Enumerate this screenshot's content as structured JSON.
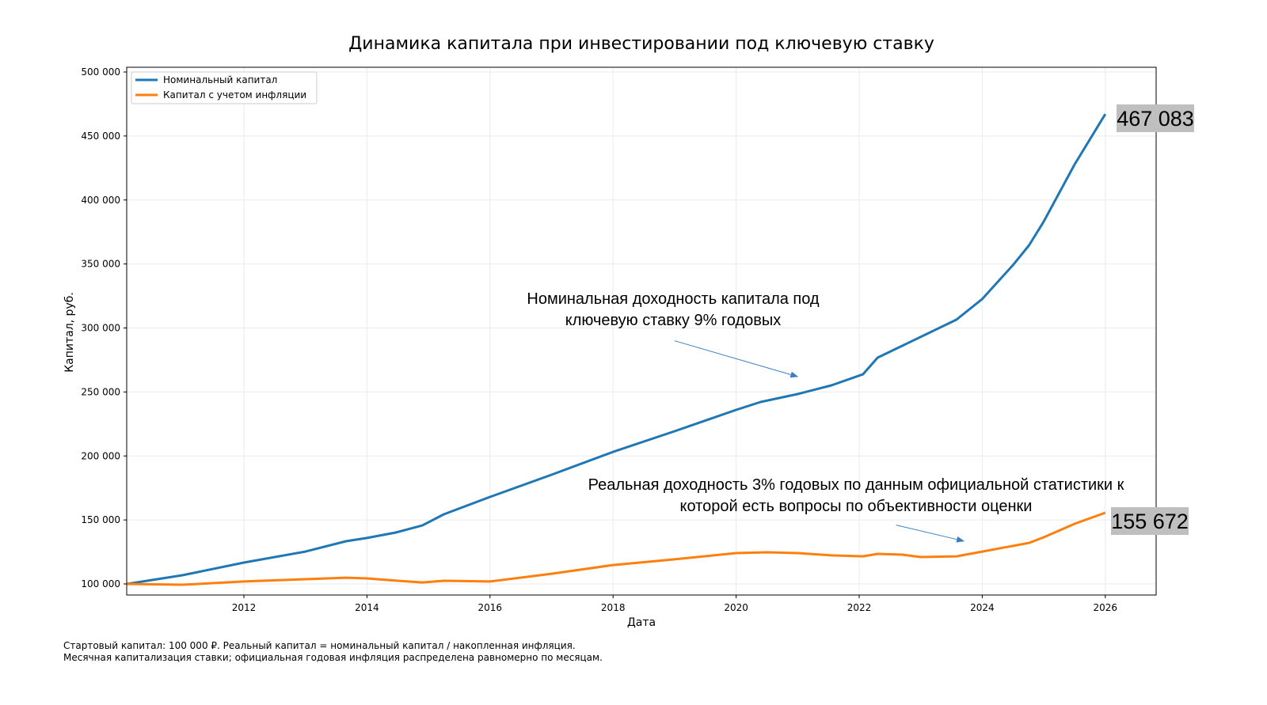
{
  "chart_data": {
    "type": "line",
    "title": "Динамика капитала при инвестировании под ключевую ставку",
    "xlabel": "Дата",
    "ylabel": "Капитал, руб.",
    "xlim": [
      2010.1,
      2026.8
    ],
    "ylim": [
      90000,
      505000
    ],
    "grid": true,
    "legend_position": "top-left",
    "x_ticks": [
      "2012",
      "2014",
      "2016",
      "2018",
      "2020",
      "2022",
      "2024",
      "2026"
    ],
    "y_ticks": [
      "100 000",
      "150 000",
      "200 000",
      "250 000",
      "300 000",
      "350 000",
      "400 000",
      "450 000",
      "500 000"
    ],
    "series": [
      {
        "name": "Номинальный капитал",
        "color": "#1f77b4",
        "x": [
          2010.1,
          2011.0,
          2012.0,
          2013.0,
          2013.66,
          2014.0,
          2014.47,
          2014.9,
          2015.25,
          2016.0,
          2017.0,
          2018.0,
          2019.0,
          2020.0,
          2020.4,
          2021.0,
          2021.55,
          2022.06,
          2022.3,
          2022.7,
          2023.58,
          2024.0,
          2024.5,
          2024.76,
          2025.0,
          2025.5,
          2026.0
        ],
        "y": [
          100000,
          106800,
          116700,
          125300,
          133400,
          135900,
          140200,
          145700,
          154400,
          168000,
          185300,
          203200,
          219300,
          236000,
          242200,
          248400,
          255200,
          263800,
          276800,
          286100,
          306500,
          322600,
          349200,
          364600,
          383200,
          427700,
          467083
        ]
      },
      {
        "name": "Капитал с учетом инфляции",
        "color": "#ff7f0e",
        "x": [
          2010.1,
          2011.0,
          2012.0,
          2013.0,
          2013.66,
          2014.0,
          2014.5,
          2014.9,
          2015.25,
          2016.0,
          2017.0,
          2018.0,
          2019.0,
          2020.0,
          2020.5,
          2021.0,
          2021.55,
          2022.06,
          2022.3,
          2022.7,
          2023.0,
          2023.58,
          2024.0,
          2024.76,
          2025.0,
          2025.5,
          2026.0
        ],
        "y": [
          100000,
          99400,
          101900,
          103700,
          104900,
          104300,
          102500,
          101200,
          102500,
          101900,
          108000,
          114800,
          119200,
          124100,
          124700,
          124100,
          122300,
          121600,
          123500,
          122900,
          121000,
          121600,
          125300,
          132100,
          136500,
          147000,
          155672
        ]
      }
    ],
    "end_labels": [
      "467 083",
      "155 672"
    ],
    "end_label_bg": "#bfbfbf",
    "annotations": [
      {
        "lines": [
          "Номинальная доходность капитала под",
          "ключевую ставку  9% годовых"
        ],
        "arrow_from": [
          2019.0,
          290000
        ],
        "arrow_to": [
          2021.0,
          262000
        ]
      },
      {
        "lines": [
          "Реальная доходность 3% годовых по данным официальной статистики к",
          "которой есть вопросы по объективности  оценки"
        ],
        "arrow_from": [
          2022.6,
          146000
        ],
        "arrow_to": [
          2023.7,
          133500
        ]
      }
    ],
    "footnote": [
      "Стартовый капитал: 100 000 ₽. Реальный капитал = номинальный капитал / накопленная инфляция.",
      "Месячная капитализация ставки; официальная годовая инфляция распределена равномерно по месяцам."
    ]
  }
}
